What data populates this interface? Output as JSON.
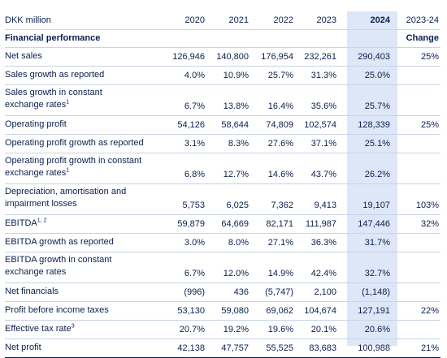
{
  "header": {
    "unit": "DKK million",
    "years": [
      "2020",
      "2021",
      "2022",
      "2023",
      "2024"
    ],
    "change_col": "2023-24"
  },
  "section": {
    "title": "Financial performance",
    "change_label": "Change"
  },
  "rows": [
    {
      "label": "Net sales",
      "label2": "",
      "sup": "",
      "v2020": "126,946",
      "v2021": "140,800",
      "v2022": "176,954",
      "v2023": "232,261",
      "v2024": "290,403",
      "change": "25%"
    },
    {
      "label": "Sales growth as reported",
      "label2": "",
      "sup": "",
      "v2020": "4.0%",
      "v2021": "10.9%",
      "v2022": "25.7%",
      "v2023": "31.3%",
      "v2024": "25.0%",
      "change": ""
    },
    {
      "label": "Sales growth in constant",
      "label2": "exchange rates",
      "sup": "1",
      "v2020": "6.7%",
      "v2021": "13.8%",
      "v2022": "16.4%",
      "v2023": "35.6%",
      "v2024": "25.7%",
      "change": ""
    },
    {
      "label": "Operating profit",
      "label2": "",
      "sup": "",
      "v2020": "54,126",
      "v2021": "58,644",
      "v2022": "74,809",
      "v2023": "102,574",
      "v2024": "128,339",
      "change": "25%"
    },
    {
      "label": "Operating profit growth as reported",
      "label2": "",
      "sup": "",
      "v2020": "3.1%",
      "v2021": "8.3%",
      "v2022": "27.6%",
      "v2023": "37.1%",
      "v2024": "25.1%",
      "change": ""
    },
    {
      "label": "Operating profit growth in constant",
      "label2": "exchange rates",
      "sup": "1",
      "v2020": "6.8%",
      "v2021": "12.7%",
      "v2022": "14.6%",
      "v2023": "43.7%",
      "v2024": "26.2%",
      "change": ""
    },
    {
      "label": "Depreciation, amortisation and",
      "label2": "impairment losses",
      "sup": "",
      "v2020": "5,753",
      "v2021": "6,025",
      "v2022": "7,362",
      "v2023": "9,413",
      "v2024": "19,107",
      "change": "103%"
    },
    {
      "label": "EBITDA",
      "label2": "",
      "sup": "1, 2",
      "v2020": "59,879",
      "v2021": "64,669",
      "v2022": "82,171",
      "v2023": "111,987",
      "v2024": "147,446",
      "change": "32%"
    },
    {
      "label": "EBITDA growth as reported",
      "label2": "",
      "sup": "",
      "v2020": "3.0%",
      "v2021": "8.0%",
      "v2022": "27.1%",
      "v2023": "36.3%",
      "v2024": "31.7%",
      "change": ""
    },
    {
      "label": "EBITDA growth in constant",
      "label2": "exchange rates",
      "sup": "",
      "v2020": "6.7%",
      "v2021": "12.0%",
      "v2022": "14.9%",
      "v2023": "42.4%",
      "v2024": "32.7%",
      "change": ""
    },
    {
      "label": "Net financials",
      "label2": "",
      "sup": "",
      "v2020": "(996)",
      "v2021": "436",
      "v2022": "(5,747)",
      "v2023": "2,100",
      "v2024": "(1,148)",
      "change": ""
    },
    {
      "label": "Profit before income taxes",
      "label2": "",
      "sup": "",
      "v2020": "53,130",
      "v2021": "59,080",
      "v2022": "69,062",
      "v2023": "104,674",
      "v2024": "127,191",
      "change": "22%"
    },
    {
      "label": "Effective tax rate",
      "label2": "",
      "sup": "3",
      "v2020": "20.7%",
      "v2021": "19.2%",
      "v2022": "19.6%",
      "v2023": "20.1%",
      "v2024": "20.6%",
      "change": ""
    },
    {
      "label": "Net profit",
      "label2": "",
      "sup": "",
      "v2020": "42,138",
      "v2021": "47,757",
      "v2022": "55,525",
      "v2023": "83,683",
      "v2024": "100,988",
      "change": "21%"
    }
  ],
  "colors": {
    "highlight": "#dde7f7",
    "text": "#0b1f4d",
    "rule": "#c9d4e6"
  }
}
